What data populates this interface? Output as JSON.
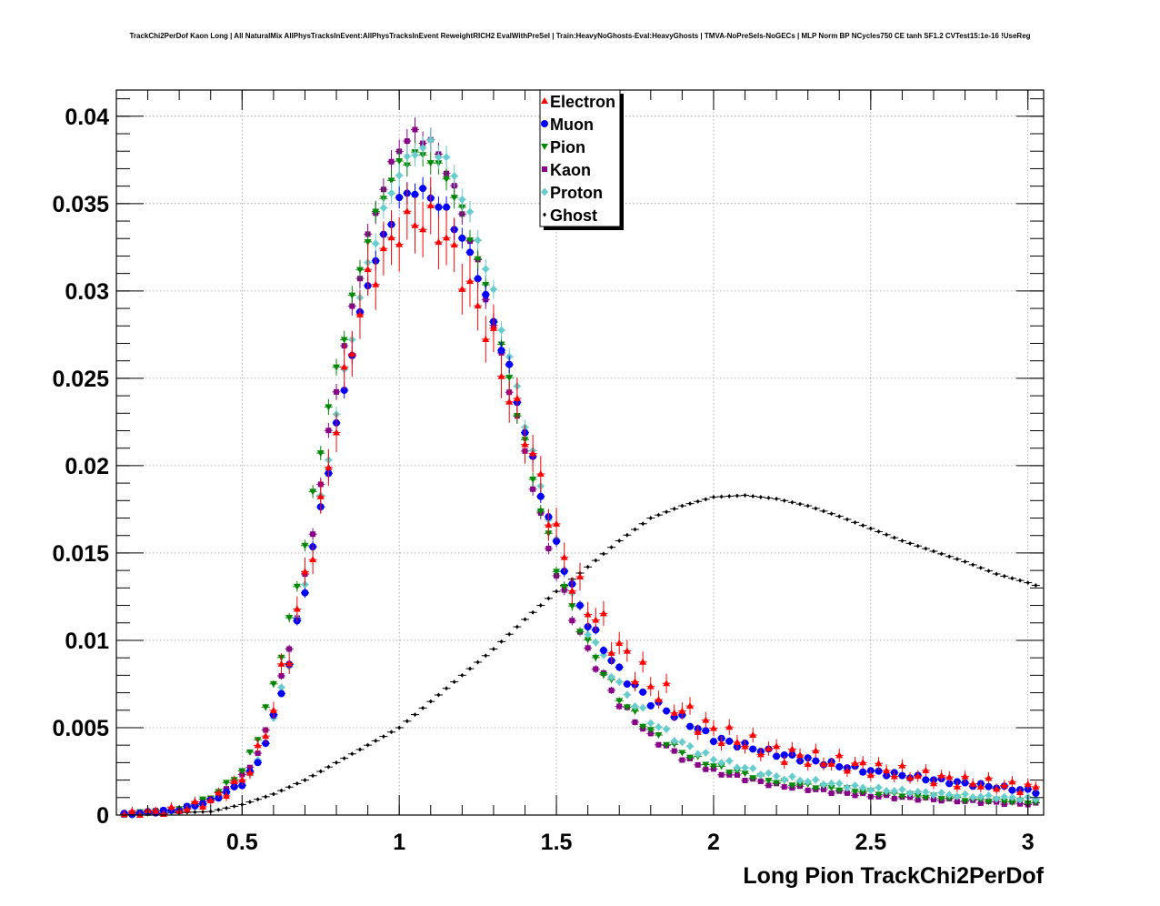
{
  "chart_data": {
    "type": "scatter",
    "title": "TrackChi2PerDof Kaon Long | All NaturalMix AllPhysTracksInEvent:AllPhysTracksInEvent ReweightRICH2 EvalWithPreSel | Train:HeavyNoGhosts-Eval:HeavyGhosts | TMVA-NoPreSels-NoGECs | MLP Norm BP NCycles750 CE tanh SF1.2 CVTest15:1e-16 !UseReg",
    "xlabel": "Long Pion TrackChi2PerDof",
    "ylabel": "",
    "xlim": [
      0.1,
      3.05
    ],
    "ylim": [
      0,
      0.0415
    ],
    "grid": true,
    "legend_position": "top-center",
    "x_ticks": [
      0.5,
      1,
      1.5,
      2,
      2.5,
      3
    ],
    "x_tick_labels": [
      "0.5",
      "1",
      "1.5",
      "2",
      "2.5",
      "3"
    ],
    "y_ticks": [
      0,
      0.005,
      0.01,
      0.015,
      0.02,
      0.025,
      0.03,
      0.035,
      0.04
    ],
    "y_tick_labels": [
      "0",
      "0.005",
      "0.01",
      "0.015",
      "0.02",
      "0.025",
      "0.03",
      "0.035",
      "0.04"
    ],
    "x_bin_centers": "0.125 to 3.025 step 0.025",
    "series": [
      {
        "name": "Electron",
        "color": "#ff0000",
        "marker": "triangle-up",
        "knots": [
          [
            0.1,
            0
          ],
          [
            0.3,
            0.0003
          ],
          [
            0.4,
            0.0008
          ],
          [
            0.5,
            0.002
          ],
          [
            0.55,
            0.0035
          ],
          [
            0.6,
            0.0062
          ],
          [
            0.65,
            0.0095
          ],
          [
            0.7,
            0.0135
          ],
          [
            0.75,
            0.0175
          ],
          [
            0.8,
            0.0225
          ],
          [
            0.85,
            0.027
          ],
          [
            0.9,
            0.0305
          ],
          [
            0.95,
            0.032
          ],
          [
            1.0,
            0.0335
          ],
          [
            1.05,
            0.034
          ],
          [
            1.1,
            0.034
          ],
          [
            1.15,
            0.033
          ],
          [
            1.2,
            0.031
          ],
          [
            1.25,
            0.029
          ],
          [
            1.3,
            0.027
          ],
          [
            1.35,
            0.024
          ],
          [
            1.4,
            0.022
          ],
          [
            1.45,
            0.019
          ],
          [
            1.5,
            0.016
          ],
          [
            1.55,
            0.0135
          ],
          [
            1.6,
            0.012
          ],
          [
            1.7,
            0.0095
          ],
          [
            1.8,
            0.0075
          ],
          [
            1.9,
            0.006
          ],
          [
            2.0,
            0.0048
          ],
          [
            2.2,
            0.0036
          ],
          [
            2.5,
            0.0027
          ],
          [
            2.8,
            0.0019
          ],
          [
            3.05,
            0.0015
          ]
        ]
      },
      {
        "name": "Muon",
        "color": "#0000ff",
        "marker": "circle",
        "knots": [
          [
            0.1,
            0
          ],
          [
            0.3,
            0.0003
          ],
          [
            0.4,
            0.0008
          ],
          [
            0.5,
            0.0018
          ],
          [
            0.55,
            0.003
          ],
          [
            0.6,
            0.0055
          ],
          [
            0.65,
            0.0087
          ],
          [
            0.7,
            0.013
          ],
          [
            0.75,
            0.0175
          ],
          [
            0.8,
            0.0222
          ],
          [
            0.85,
            0.0265
          ],
          [
            0.9,
            0.0305
          ],
          [
            0.95,
            0.033
          ],
          [
            1.0,
            0.0352
          ],
          [
            1.05,
            0.0358
          ],
          [
            1.1,
            0.0354
          ],
          [
            1.15,
            0.0345
          ],
          [
            1.2,
            0.033
          ],
          [
            1.25,
            0.031
          ],
          [
            1.3,
            0.0282
          ],
          [
            1.35,
            0.0255
          ],
          [
            1.4,
            0.022
          ],
          [
            1.45,
            0.0185
          ],
          [
            1.5,
            0.0155
          ],
          [
            1.55,
            0.013
          ],
          [
            1.6,
            0.011
          ],
          [
            1.7,
            0.0082
          ],
          [
            1.8,
            0.0065
          ],
          [
            1.9,
            0.0055
          ],
          [
            2.0,
            0.0044
          ],
          [
            2.2,
            0.0035
          ],
          [
            2.5,
            0.0025
          ],
          [
            2.8,
            0.0018
          ],
          [
            3.05,
            0.0013
          ]
        ]
      },
      {
        "name": "Pion",
        "color": "#008800",
        "marker": "triangle-down",
        "knots": [
          [
            0.1,
            0
          ],
          [
            0.3,
            0.0003
          ],
          [
            0.4,
            0.001
          ],
          [
            0.5,
            0.0025
          ],
          [
            0.55,
            0.0045
          ],
          [
            0.6,
            0.0075
          ],
          [
            0.65,
            0.011
          ],
          [
            0.7,
            0.0155
          ],
          [
            0.75,
            0.021
          ],
          [
            0.8,
            0.0255
          ],
          [
            0.85,
            0.0295
          ],
          [
            0.9,
            0.033
          ],
          [
            0.95,
            0.0355
          ],
          [
            1.0,
            0.0372
          ],
          [
            1.05,
            0.0378
          ],
          [
            1.1,
            0.0376
          ],
          [
            1.15,
            0.0365
          ],
          [
            1.2,
            0.0345
          ],
          [
            1.25,
            0.0318
          ],
          [
            1.3,
            0.0285
          ],
          [
            1.35,
            0.025
          ],
          [
            1.4,
            0.0212
          ],
          [
            1.45,
            0.0175
          ],
          [
            1.5,
            0.0142
          ],
          [
            1.55,
            0.0118
          ],
          [
            1.6,
            0.0098
          ],
          [
            1.7,
            0.0067
          ],
          [
            1.8,
            0.0048
          ],
          [
            1.9,
            0.0036
          ],
          [
            2.0,
            0.0028
          ],
          [
            2.2,
            0.0019
          ],
          [
            2.5,
            0.0013
          ],
          [
            2.8,
            0.0009
          ],
          [
            3.05,
            0.0007
          ]
        ]
      },
      {
        "name": "Kaon",
        "color": "#880088",
        "marker": "square",
        "knots": [
          [
            0.1,
            0
          ],
          [
            0.3,
            0.0003
          ],
          [
            0.4,
            0.0009
          ],
          [
            0.5,
            0.0022
          ],
          [
            0.55,
            0.0035
          ],
          [
            0.6,
            0.006
          ],
          [
            0.65,
            0.0095
          ],
          [
            0.7,
            0.0135
          ],
          [
            0.75,
            0.019
          ],
          [
            0.8,
            0.0245
          ],
          [
            0.85,
            0.029
          ],
          [
            0.9,
            0.033
          ],
          [
            0.95,
            0.036
          ],
          [
            1.0,
            0.0382
          ],
          [
            1.05,
            0.039
          ],
          [
            1.1,
            0.0385
          ],
          [
            1.15,
            0.037
          ],
          [
            1.2,
            0.0345
          ],
          [
            1.25,
            0.0315
          ],
          [
            1.3,
            0.028
          ],
          [
            1.35,
            0.0245
          ],
          [
            1.4,
            0.0208
          ],
          [
            1.45,
            0.017
          ],
          [
            1.5,
            0.0138
          ],
          [
            1.55,
            0.0114
          ],
          [
            1.6,
            0.0094
          ],
          [
            1.7,
            0.0064
          ],
          [
            1.8,
            0.0045
          ],
          [
            1.9,
            0.0033
          ],
          [
            2.0,
            0.0025
          ],
          [
            2.2,
            0.0017
          ],
          [
            2.5,
            0.0011
          ],
          [
            2.8,
            0.0008
          ],
          [
            3.05,
            0.0006
          ]
        ]
      },
      {
        "name": "Proton",
        "color": "#66cccc",
        "marker": "diamond",
        "knots": [
          [
            0.1,
            0
          ],
          [
            0.3,
            0.0003
          ],
          [
            0.4,
            0.0008
          ],
          [
            0.5,
            0.0018
          ],
          [
            0.55,
            0.003
          ],
          [
            0.6,
            0.0055
          ],
          [
            0.65,
            0.0088
          ],
          [
            0.7,
            0.0132
          ],
          [
            0.75,
            0.018
          ],
          [
            0.8,
            0.023
          ],
          [
            0.85,
            0.0275
          ],
          [
            0.9,
            0.0315
          ],
          [
            0.95,
            0.0345
          ],
          [
            1.0,
            0.0368
          ],
          [
            1.05,
            0.038
          ],
          [
            1.1,
            0.0384
          ],
          [
            1.15,
            0.0375
          ],
          [
            1.2,
            0.0355
          ],
          [
            1.25,
            0.033
          ],
          [
            1.3,
            0.0298
          ],
          [
            1.35,
            0.0262
          ],
          [
            1.4,
            0.0225
          ],
          [
            1.45,
            0.0188
          ],
          [
            1.5,
            0.0155
          ],
          [
            1.55,
            0.0128
          ],
          [
            1.6,
            0.0106
          ],
          [
            1.7,
            0.0074
          ],
          [
            1.8,
            0.0054
          ],
          [
            1.9,
            0.0041
          ],
          [
            2.0,
            0.0032
          ],
          [
            2.2,
            0.0022
          ],
          [
            2.5,
            0.0015
          ],
          [
            2.8,
            0.0011
          ],
          [
            3.05,
            0.0009
          ]
        ]
      },
      {
        "name": "Ghost",
        "color": "#000000",
        "marker": "small-diamond",
        "knots": [
          [
            0.1,
            0
          ],
          [
            0.4,
            0.0002
          ],
          [
            0.5,
            0.0006
          ],
          [
            0.6,
            0.0012
          ],
          [
            0.7,
            0.002
          ],
          [
            0.8,
            0.003
          ],
          [
            0.9,
            0.004
          ],
          [
            1.0,
            0.005
          ],
          [
            1.1,
            0.0065
          ],
          [
            1.2,
            0.008
          ],
          [
            1.3,
            0.0095
          ],
          [
            1.4,
            0.0112
          ],
          [
            1.5,
            0.0128
          ],
          [
            1.6,
            0.0142
          ],
          [
            1.7,
            0.0157
          ],
          [
            1.8,
            0.017
          ],
          [
            1.9,
            0.0177
          ],
          [
            2.0,
            0.0182
          ],
          [
            2.1,
            0.0183
          ],
          [
            2.2,
            0.0181
          ],
          [
            2.3,
            0.0177
          ],
          [
            2.4,
            0.0171
          ],
          [
            2.5,
            0.0164
          ],
          [
            2.6,
            0.0157
          ],
          [
            2.7,
            0.0151
          ],
          [
            2.8,
            0.0145
          ],
          [
            2.9,
            0.0138
          ],
          [
            3.0,
            0.0133
          ],
          [
            3.05,
            0.013
          ]
        ]
      }
    ]
  }
}
